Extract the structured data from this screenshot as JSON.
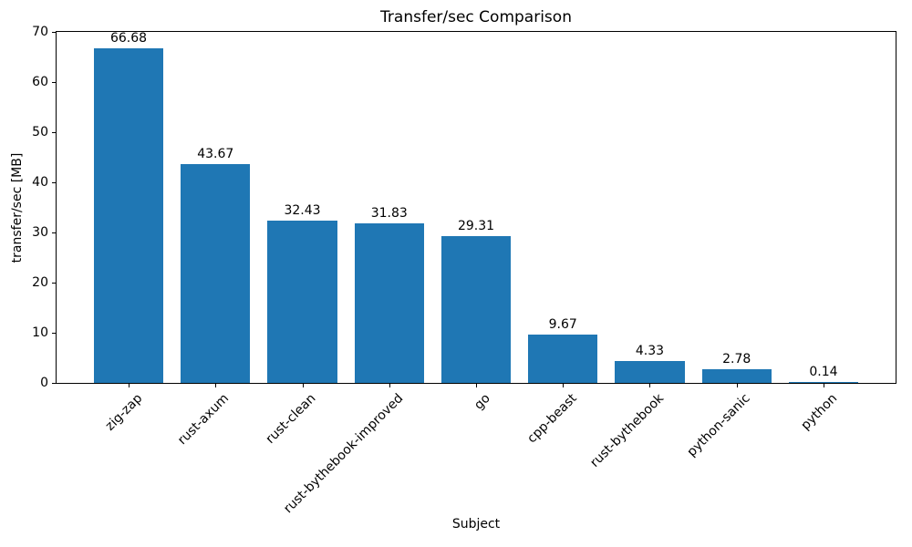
{
  "chart_data": {
    "type": "bar",
    "title": "Transfer/sec Comparison",
    "xlabel": "Subject",
    "ylabel": "transfer/sec [MB]",
    "categories": [
      "zig-zap",
      "rust-axum",
      "rust-clean",
      "rust-bythebook-improved",
      "go",
      "cpp-beast",
      "rust-bythebook",
      "python-sanic",
      "python"
    ],
    "values": [
      66.68,
      43.67,
      32.43,
      31.83,
      29.31,
      9.67,
      4.33,
      2.78,
      0.14
    ],
    "value_labels": [
      "66.68",
      "43.67",
      "32.43",
      "31.83",
      "29.31",
      "9.67",
      "4.33",
      "2.78",
      "0.14"
    ],
    "ylim": [
      0,
      70
    ],
    "yticks": [
      0,
      10,
      20,
      30,
      40,
      50,
      60,
      70
    ],
    "bar_color": "#1f77b4",
    "grid": false,
    "legend_position": "none",
    "background_color": "#ffffff",
    "text_color": "#000000",
    "x_tick_rotation_deg": 45
  }
}
